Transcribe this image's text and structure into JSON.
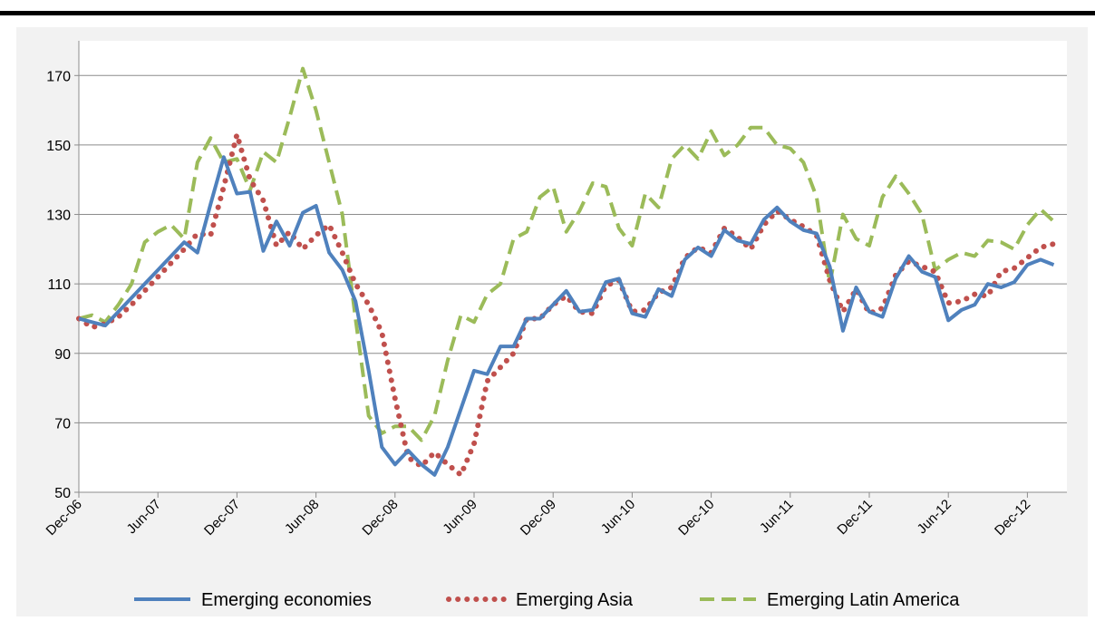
{
  "chart_data": {
    "type": "line",
    "categories": [
      "Dec-06",
      null,
      null,
      null,
      null,
      null,
      "Jun-07",
      null,
      null,
      null,
      null,
      null,
      "Dec-07",
      null,
      null,
      null,
      null,
      null,
      "Jun-08",
      null,
      null,
      null,
      null,
      null,
      "Dec-08",
      null,
      null,
      null,
      null,
      null,
      "Jun-09",
      null,
      null,
      null,
      null,
      null,
      "Dec-09",
      null,
      null,
      null,
      null,
      null,
      "Jun-10",
      null,
      null,
      null,
      null,
      null,
      "Dec-10",
      null,
      null,
      null,
      null,
      null,
      "Jun-11",
      null,
      null,
      null,
      null,
      null,
      "Dec-11",
      null,
      null,
      null,
      null,
      null,
      "Jun-12",
      null,
      null,
      null,
      null,
      null,
      "Dec-12",
      null,
      null
    ],
    "series": [
      {
        "name": "Emerging economies",
        "color": "#4f81bd",
        "style": "solid",
        "values": [
          100,
          99,
          98,
          102,
          106,
          110,
          114,
          118,
          122,
          119,
          133,
          146.5,
          136,
          136.5,
          119.5,
          128,
          121,
          130.5,
          132.5,
          119,
          114,
          105,
          85,
          63,
          58,
          62,
          58,
          55,
          63,
          74,
          85,
          84,
          92,
          92,
          100,
          100,
          104,
          108,
          102,
          102.5,
          110.5,
          111.5,
          101.5,
          100.5,
          108.5,
          106.5,
          117,
          120.5,
          118,
          125.5,
          122.5,
          121.5,
          128.5,
          132,
          128,
          125.5,
          124.5,
          115,
          96.5,
          109,
          102,
          100.5,
          111.5,
          118,
          113.5,
          112,
          99.5,
          102.5,
          104,
          110,
          109,
          110.5,
          115.5,
          117,
          115.5
        ]
      },
      {
        "name": "Emerging Asia",
        "color": "#c0504d",
        "style": "dotted",
        "values": [
          100,
          97.5,
          98.5,
          100.5,
          104,
          108,
          112,
          116,
          120,
          124.5,
          124,
          138,
          153,
          140,
          134,
          121,
          125,
          120,
          124,
          127,
          119,
          110,
          104,
          96,
          77,
          60,
          57.5,
          61.5,
          58,
          55,
          64,
          82,
          86,
          90,
          100,
          100,
          104,
          106.5,
          102,
          101.5,
          109.5,
          111,
          102,
          102.5,
          107.5,
          109,
          117.5,
          120.5,
          119,
          126,
          123.5,
          120,
          127,
          131,
          128.5,
          126.5,
          124,
          111,
          102,
          108.5,
          101.5,
          103,
          112.5,
          116.5,
          115,
          113.5,
          104.5,
          105,
          107,
          106.5,
          113.5,
          114.5,
          117.5,
          120.5,
          121.5
        ]
      },
      {
        "name": "Emerging Latin America",
        "color": "#9bbb59",
        "style": "dashed",
        "values": [
          100,
          101,
          99,
          104,
          110,
          122,
          125,
          127,
          123,
          145,
          152,
          145,
          146,
          137,
          148,
          145,
          158,
          172,
          160,
          145,
          130,
          100,
          72,
          67,
          69,
          69,
          65,
          72,
          88,
          101,
          99,
          107,
          110,
          123,
          125,
          135,
          138,
          125,
          131,
          139,
          138,
          126,
          121,
          136,
          132,
          146,
          150,
          146,
          154,
          147,
          150,
          155,
          155,
          150,
          149,
          145,
          135,
          110,
          130,
          123,
          121,
          135,
          141,
          136,
          130,
          114,
          117,
          119,
          118,
          122.5,
          122,
          120,
          127,
          131.5,
          128
        ]
      }
    ],
    "ylim": [
      50,
      180
    ],
    "yticks": [
      50,
      70,
      90,
      110,
      130,
      150,
      170
    ],
    "grid": true,
    "legend": "bottom"
  }
}
